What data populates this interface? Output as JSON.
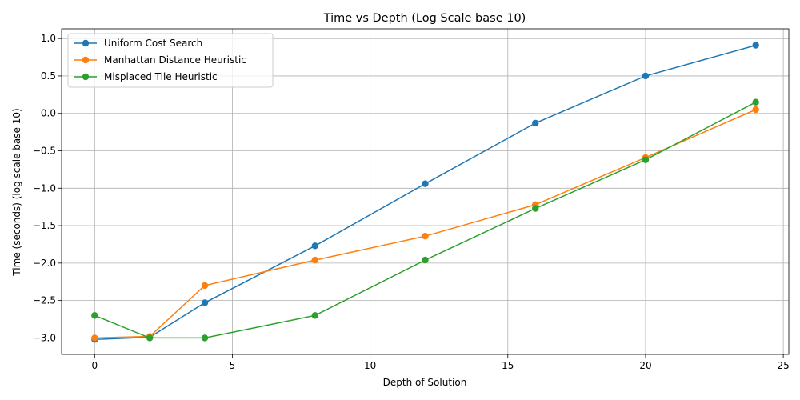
{
  "chart_data": {
    "type": "line",
    "title": "Time vs Depth (Log Scale base 10)",
    "xlabel": "Depth of Solution",
    "ylabel": "Time (seconds) (log scale base 10)",
    "xlim": [
      -1.2,
      25.2
    ],
    "ylim": [
      -3.22,
      1.13
    ],
    "x_ticks": [
      0,
      5,
      10,
      15,
      20,
      25
    ],
    "y_ticks": [
      -3.0,
      -2.5,
      -2.0,
      -1.5,
      -1.0,
      -0.5,
      0.0,
      0.5,
      1.0
    ],
    "x_tick_labels": [
      "0",
      "5",
      "10",
      "15",
      "20",
      "25"
    ],
    "y_tick_labels": [
      "−3.0",
      "−2.5",
      "−2.0",
      "−1.5",
      "−1.0",
      "−0.5",
      "0.0",
      "0.5",
      "1.0"
    ],
    "grid": true,
    "legend_position": "top-left",
    "x": [
      0,
      2,
      4,
      8,
      12,
      16,
      20,
      24
    ],
    "series": [
      {
        "name": "Uniform Cost Search",
        "color": "#1f77b4",
        "values": [
          -3.02,
          -2.99,
          -2.53,
          -1.77,
          -0.94,
          -0.13,
          0.5,
          0.91
        ]
      },
      {
        "name": "Manhattan Distance Heuristic",
        "color": "#ff7f0e",
        "values": [
          -3.0,
          -2.98,
          -2.3,
          -1.96,
          -1.64,
          -1.22,
          -0.59,
          0.05
        ]
      },
      {
        "name": "Misplaced Tile Heuristic",
        "color": "#2ca02c",
        "values": [
          -2.7,
          -3.0,
          -3.0,
          -2.7,
          -1.96,
          -1.27,
          -0.62,
          0.15
        ]
      }
    ]
  }
}
